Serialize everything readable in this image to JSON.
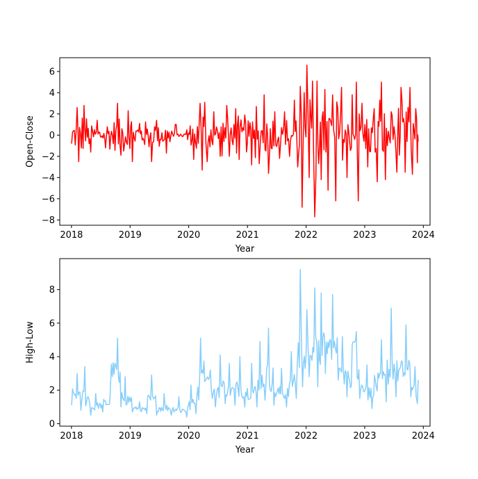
{
  "chart_data": [
    {
      "type": "line",
      "xlabel": "Year",
      "ylabel": "Open-Close",
      "color": "#ff0000",
      "xlim": [
        "2017-10-20",
        "2024-02-12"
      ],
      "ylim": [
        -8.5,
        7.3
      ],
      "xticks": [
        {
          "value": "2018-01-01",
          "label": "2018"
        },
        {
          "value": "2019-01-01",
          "label": "2019"
        },
        {
          "value": "2020-01-01",
          "label": "2020"
        },
        {
          "value": "2021-01-01",
          "label": "2021"
        },
        {
          "value": "2022-01-01",
          "label": "2022"
        },
        {
          "value": "2023-01-01",
          "label": "2023"
        },
        {
          "value": "2024-01-01",
          "label": "2024"
        }
      ],
      "yticks": [
        {
          "value": 6,
          "label": "6"
        },
        {
          "value": 4,
          "label": "4"
        },
        {
          "value": 2,
          "label": "2"
        },
        {
          "value": 0,
          "label": "0"
        },
        {
          "value": -2,
          "label": "−2"
        },
        {
          "value": -4,
          "label": "−4"
        },
        {
          "value": -6,
          "label": "−6"
        },
        {
          "value": -8,
          "label": "−8"
        }
      ],
      "grid": false,
      "series": [
        {
          "points": [
            [
              "2018-01-02",
              -0.8
            ],
            [
              "2018-02-05",
              2.6
            ],
            [
              "2018-02-15",
              -2.5
            ],
            [
              "2018-03-20",
              2.8
            ],
            [
              "2018-05-01",
              -1.6
            ],
            [
              "2018-06-10",
              1.4
            ],
            [
              "2018-08-01",
              -1.2
            ],
            [
              "2018-10-15",
              3.0
            ],
            [
              "2018-11-05",
              -1.9
            ],
            [
              "2018-12-20",
              2.3
            ],
            [
              "2019-01-15",
              -2.5
            ],
            [
              "2019-03-01",
              1.1
            ],
            [
              "2019-05-15",
              -2.5
            ],
            [
              "2019-06-15",
              1.4
            ],
            [
              "2019-08-15",
              -1.7
            ],
            [
              "2019-10-15",
              1.0
            ],
            [
              "2019-12-20",
              0.5
            ],
            [
              "2020-02-01",
              -2.3
            ],
            [
              "2020-03-12",
              3.0
            ],
            [
              "2020-03-25",
              -3.3
            ],
            [
              "2020-04-10",
              3.1
            ],
            [
              "2020-04-25",
              -2.5
            ],
            [
              "2020-06-05",
              2.2
            ],
            [
              "2020-07-15",
              -2.0
            ],
            [
              "2020-08-25",
              2.8
            ],
            [
              "2020-09-10",
              -2.0
            ],
            [
              "2020-10-20",
              2.5
            ],
            [
              "2020-11-10",
              -2.3
            ],
            [
              "2020-12-15",
              1.9
            ],
            [
              "2021-01-27",
              -2.8
            ],
            [
              "2021-02-25",
              2.7
            ],
            [
              "2021-03-15",
              -2.7
            ],
            [
              "2021-04-15",
              3.8
            ],
            [
              "2021-05-12",
              -3.6
            ],
            [
              "2021-06-20",
              2.2
            ],
            [
              "2021-07-20",
              -2.2
            ],
            [
              "2021-08-20",
              2.2
            ],
            [
              "2021-09-20",
              -2.0
            ],
            [
              "2021-10-20",
              3.3
            ],
            [
              "2021-11-10",
              -3.0
            ],
            [
              "2021-11-26",
              4.6
            ],
            [
              "2021-12-07",
              -6.8
            ],
            [
              "2021-12-20",
              4.0
            ],
            [
              "2022-01-06",
              6.6
            ],
            [
              "2022-01-20",
              -4.0
            ],
            [
              "2022-02-10",
              5.1
            ],
            [
              "2022-02-24",
              -7.7
            ],
            [
              "2022-03-10",
              5.1
            ],
            [
              "2022-04-05",
              -4.2
            ],
            [
              "2022-04-28",
              4.3
            ],
            [
              "2022-05-18",
              -5.2
            ],
            [
              "2022-06-15",
              3.8
            ],
            [
              "2022-07-05",
              -6.2
            ],
            [
              "2022-08-10",
              4.5
            ],
            [
              "2022-09-13",
              -4.0
            ],
            [
              "2022-10-15",
              3.8
            ],
            [
              "2022-11-10",
              5.0
            ],
            [
              "2022-11-22",
              -6.2
            ],
            [
              "2022-12-15",
              3.0
            ],
            [
              "2023-01-20",
              -3.0
            ],
            [
              "2023-03-01",
              2.5
            ],
            [
              "2023-03-20",
              -4.4
            ],
            [
              "2023-04-15",
              5.0
            ],
            [
              "2023-05-10",
              -4.2
            ],
            [
              "2023-06-15",
              2.2
            ],
            [
              "2023-07-20",
              -3.5
            ],
            [
              "2023-08-15",
              4.5
            ],
            [
              "2023-09-10",
              -3.5
            ],
            [
              "2023-10-10",
              4.5
            ],
            [
              "2023-10-25",
              -3.7
            ],
            [
              "2023-11-15",
              2.5
            ],
            [
              "2023-11-25",
              -2.6
            ],
            [
              "2023-11-30",
              -0.6
            ]
          ]
        }
      ]
    },
    {
      "type": "line",
      "xlabel": "Year",
      "ylabel": "High-Low",
      "color": "#87cefa",
      "xlim": [
        "2017-10-20",
        "2024-02-12"
      ],
      "ylim": [
        -0.15,
        9.85
      ],
      "xticks": [
        {
          "value": "2018-01-01",
          "label": "2018"
        },
        {
          "value": "2019-01-01",
          "label": "2019"
        },
        {
          "value": "2020-01-01",
          "label": "2020"
        },
        {
          "value": "2021-01-01",
          "label": "2021"
        },
        {
          "value": "2022-01-01",
          "label": "2022"
        },
        {
          "value": "2023-01-01",
          "label": "2023"
        },
        {
          "value": "2024-01-01",
          "label": "2024"
        }
      ],
      "yticks": [
        {
          "value": 8,
          "label": "8"
        },
        {
          "value": 6,
          "label": "6"
        },
        {
          "value": 4,
          "label": "4"
        },
        {
          "value": 2,
          "label": "2"
        },
        {
          "value": 0,
          "label": "0"
        }
      ],
      "grid": false,
      "series": [
        {
          "points": [
            [
              "2018-01-02",
              1.1
            ],
            [
              "2018-02-05",
              3.0
            ],
            [
              "2018-03-01",
              0.8
            ],
            [
              "2018-03-25",
              3.4
            ],
            [
              "2018-05-01",
              0.5
            ],
            [
              "2018-06-01",
              1.8
            ],
            [
              "2018-07-15",
              0.7
            ],
            [
              "2018-09-01",
              2.2
            ],
            [
              "2018-10-15",
              5.1
            ],
            [
              "2018-11-05",
              1.0
            ],
            [
              "2018-12-01",
              2.8
            ],
            [
              "2019-01-15",
              0.7
            ],
            [
              "2019-03-01",
              1.3
            ],
            [
              "2019-04-15",
              0.6
            ],
            [
              "2019-05-15",
              2.9
            ],
            [
              "2019-06-15",
              0.5
            ],
            [
              "2019-08-01",
              1.8
            ],
            [
              "2019-09-15",
              0.5
            ],
            [
              "2019-11-01",
              1.6
            ],
            [
              "2019-12-20",
              0.4
            ],
            [
              "2020-01-15",
              2.3
            ],
            [
              "2020-02-15",
              0.6
            ],
            [
              "2020-03-15",
              5.1
            ],
            [
              "2020-04-10",
              2.5
            ],
            [
              "2020-05-15",
              3.2
            ],
            [
              "2020-06-15",
              1.0
            ],
            [
              "2020-07-15",
              4.1
            ],
            [
              "2020-08-15",
              1.2
            ],
            [
              "2020-09-10",
              3.6
            ],
            [
              "2020-10-15",
              1.1
            ],
            [
              "2020-11-15",
              4.0
            ],
            [
              "2020-12-15",
              1.0
            ],
            [
              "2021-01-27",
              3.6
            ],
            [
              "2021-03-01",
              1.0
            ],
            [
              "2021-03-20",
              4.9
            ],
            [
              "2021-04-20",
              1.4
            ],
            [
              "2021-05-12",
              5.7
            ],
            [
              "2021-06-15",
              1.1
            ],
            [
              "2021-08-01",
              3.3
            ],
            [
              "2021-09-01",
              1.0
            ],
            [
              "2021-10-01",
              4.3
            ],
            [
              "2021-11-01",
              1.5
            ],
            [
              "2021-11-26",
              9.2
            ],
            [
              "2021-12-10",
              2.2
            ],
            [
              "2022-01-06",
              6.8
            ],
            [
              "2022-01-20",
              2.8
            ],
            [
              "2022-02-24",
              8.1
            ],
            [
              "2022-03-15",
              2.2
            ],
            [
              "2022-04-05",
              7.8
            ],
            [
              "2022-05-01",
              3.0
            ],
            [
              "2022-06-15",
              7.7
            ],
            [
              "2022-07-20",
              2.6
            ],
            [
              "2022-08-15",
              5.2
            ],
            [
              "2022-09-13",
              1.6
            ],
            [
              "2022-10-15",
              4.7
            ],
            [
              "2022-11-10",
              5.5
            ],
            [
              "2022-12-01",
              1.5
            ],
            [
              "2023-01-15",
              3.5
            ],
            [
              "2023-02-15",
              0.9
            ],
            [
              "2023-04-15",
              5.0
            ],
            [
              "2023-05-15",
              1.3
            ],
            [
              "2023-06-15",
              6.9
            ],
            [
              "2023-07-15",
              1.6
            ],
            [
              "2023-09-15",
              5.9
            ],
            [
              "2023-10-15",
              1.6
            ],
            [
              "2023-11-10",
              3.4
            ],
            [
              "2023-11-25",
              1.2
            ],
            [
              "2023-11-30",
              2.6
            ]
          ]
        }
      ]
    }
  ]
}
